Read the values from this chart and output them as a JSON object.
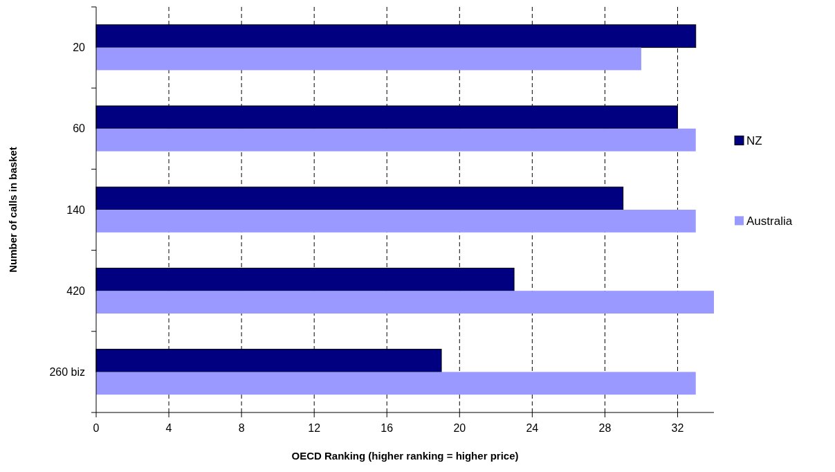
{
  "chart_data": {
    "type": "bar",
    "orientation": "horizontal",
    "xlabel": "OECD Ranking (higher ranking = higher price)",
    "ylabel": "Number of calls in basket",
    "categories": [
      "20",
      "60",
      "140",
      "420",
      "260 biz"
    ],
    "series": [
      {
        "name": "NZ",
        "color": "#000080",
        "values": [
          33,
          32,
          29,
          23,
          19
        ]
      },
      {
        "name": "Australia",
        "color": "#9999ff",
        "values": [
          30,
          33,
          33,
          34,
          33
        ]
      }
    ],
    "xlim": [
      0,
      34
    ],
    "xticks": [
      0,
      4,
      8,
      12,
      16,
      20,
      24,
      28,
      32
    ],
    "grid": "x",
    "legend": "right"
  }
}
